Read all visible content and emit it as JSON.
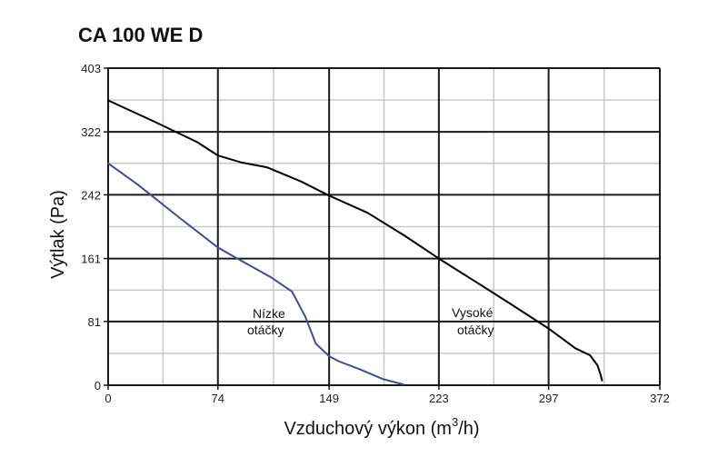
{
  "chart_data": {
    "type": "line",
    "title": "CA 100 WE D",
    "xlabel_main": "Vzduchový výkon (m",
    "xlabel_sup": "3",
    "xlabel_end": "/h)",
    "ylabel": "Výtlak (Pa)",
    "xlim": [
      0,
      372
    ],
    "ylim": [
      0,
      403
    ],
    "x_ticks": [
      0,
      74,
      149,
      223,
      297,
      372
    ],
    "y_ticks": [
      0,
      81,
      161,
      242,
      322,
      403
    ],
    "x_tick_labels": [
      "0",
      "74",
      "149",
      "223",
      "297",
      "372"
    ],
    "y_tick_labels": [
      "0",
      "81",
      "161",
      "242",
      "322",
      "403"
    ],
    "grid": true,
    "colors": {
      "grid_minor": "#c8c8c8",
      "grid_major": "#1a1a1a",
      "low": "#3a4f9a",
      "high": "#000000"
    },
    "annotations": [
      {
        "lines": [
          "Nízke",
          "otáčky"
        ],
        "series": "low"
      },
      {
        "lines": [
          "Vysoké",
          "otáčky"
        ],
        "series": "high"
      }
    ],
    "series": [
      {
        "id": "low",
        "x": [
          0,
          20,
          50,
          74,
          90,
          110,
          124,
          133,
          140,
          149,
          156,
          170,
          185,
          199
        ],
        "y": [
          282,
          255,
          210,
          175,
          158,
          137,
          119,
          87,
          53,
          37,
          30,
          20,
          8,
          1
        ]
      },
      {
        "id": "high",
        "x": [
          0,
          30,
          60,
          74,
          90,
          107,
          130,
          149,
          175,
          200,
          223,
          250,
          270,
          297,
          315,
          325,
          330,
          332,
          333
        ],
        "y": [
          362,
          336,
          309,
          292,
          283,
          277,
          259,
          241,
          219,
          190,
          161,
          129,
          105,
          72,
          47,
          38,
          25,
          14,
          6
        ]
      }
    ]
  }
}
